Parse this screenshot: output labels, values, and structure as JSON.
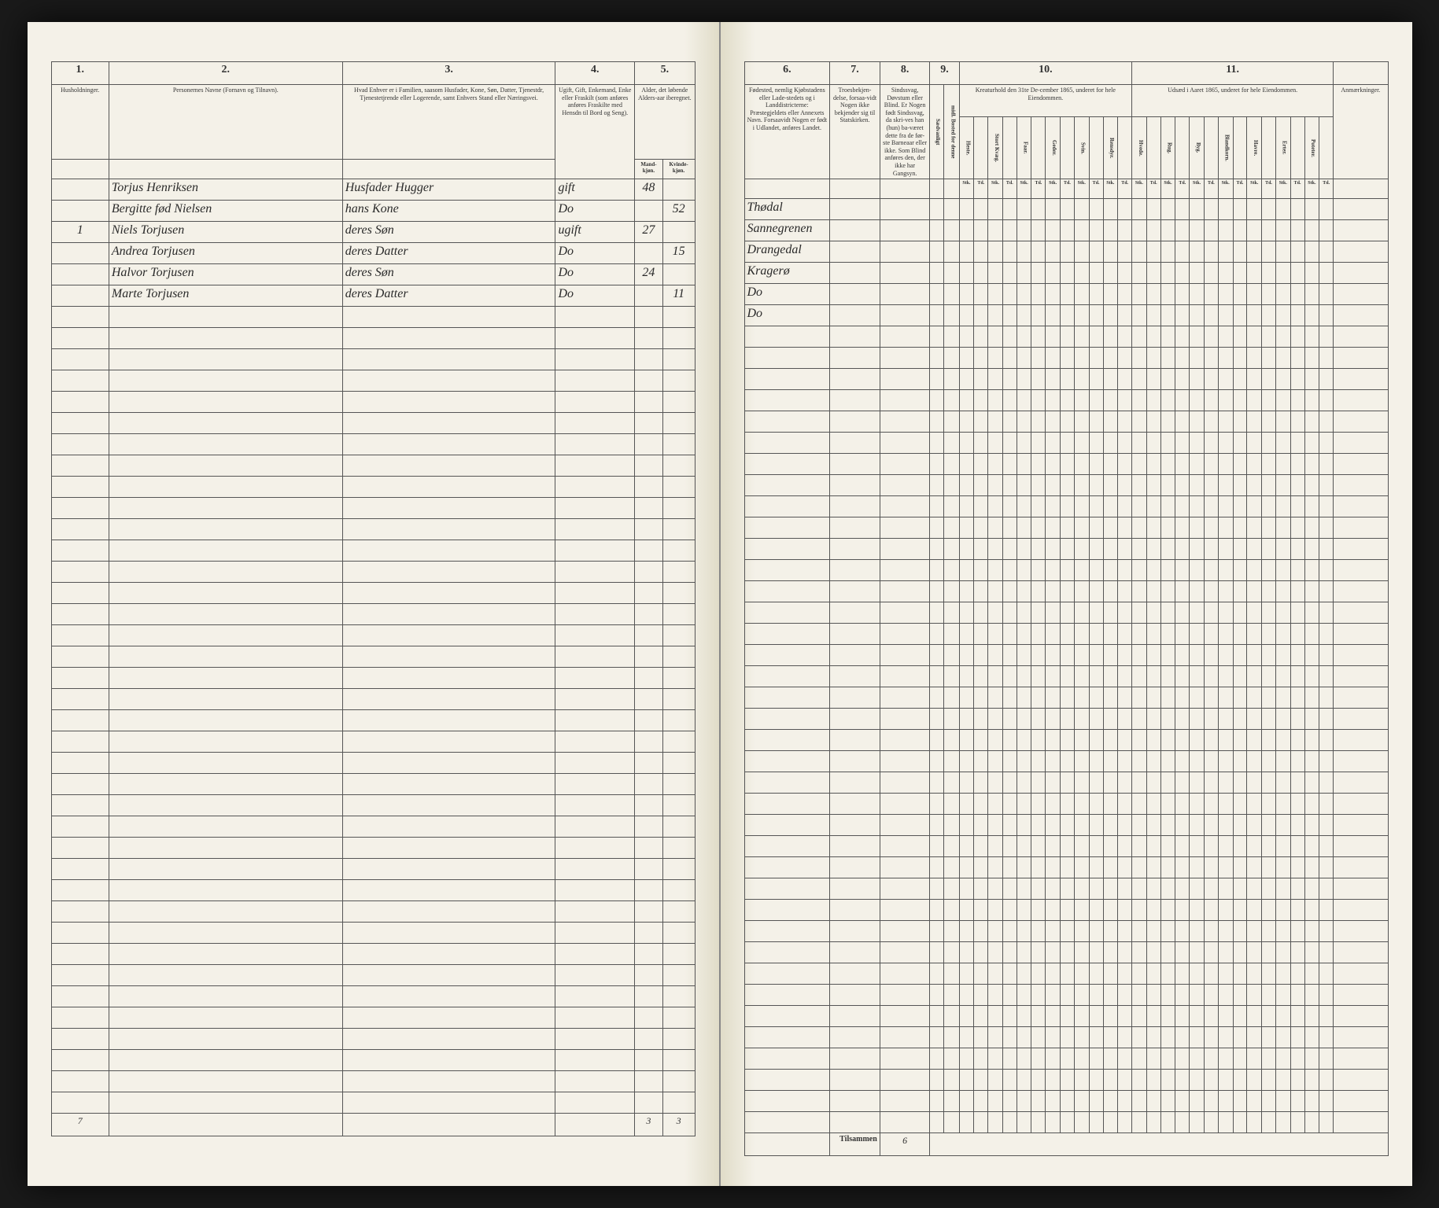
{
  "columns_left": {
    "c1": "1.",
    "c2": "2.",
    "c3": "3.",
    "c4": "4.",
    "c5": "5."
  },
  "columns_right": {
    "c6": "6.",
    "c7": "7.",
    "c8": "8.",
    "c9": "9.",
    "c10": "10.",
    "c11": "11."
  },
  "headers_left": {
    "h1": "Husholdninger.",
    "h2": "Personernes Navne (Fornavn og Tilnavn).",
    "h3": "Hvad Enhver er i Familien, saasom Husfader, Kone, Søn, Datter, Tjenestdr, Tjenestetjrende eller Logerende, samt Enhvers Stand eller Næringsvei.",
    "h4": "Ugift, Gift, Enkemand, Enke eller Fraskilt (som anføres anføres Fraskilte med Hensdn til Bord og Seng).",
    "h5": "Alder, det løbende Alders-aar iberegnet.",
    "h5a": "Mand-kjøn.",
    "h5b": "Kvinde-kjøn."
  },
  "headers_right": {
    "h6": "Fødested, nemlig Kjøbstadens eller Lade-stedets og i Landdistricterne: Præstegjeldets eller Annexets Navn. Forsaavidt Nogen er født i Udlandet, anføres Landet.",
    "h7": "Troesbekjen-delse, forsaa-vidt Nogen ikke bekjender sig til Statskirken.",
    "h8": "Sindssvag, Døvstum eller Blind. Er Nogen født Sindssvag, da skri-ves han (hun) ba-været dette fra de før-ste Barneaar eller ikke. Som Blind anføres den, der ikke har Gangsyn.",
    "h9": "",
    "h9a": "Sædvanligt",
    "h9b": "midl. Bosted for denne",
    "h10": "Kreaturhold den 31te De-cember 1865, underet for hele Eiendommen.",
    "h10_cols": [
      "Heste.",
      "Stort Kvæg.",
      "Faar.",
      "Geder.",
      "Svin.",
      "Rensdyr."
    ],
    "h11": "Udsæd i Aaret 1865, underet for hele Eiendommen.",
    "h11_cols": [
      "Hvede.",
      "Rug.",
      "Byg.",
      "Blandkorn.",
      "Havre.",
      "Erter.",
      "Poteter."
    ],
    "h12": "Anmærkninger."
  },
  "rows": [
    {
      "hh": "",
      "name": "Torjus Henriksen",
      "rel": "Husfader Hugger",
      "civ": "gift",
      "m": "48",
      "f": "",
      "birthplace": "Thødal"
    },
    {
      "hh": "",
      "name": "Bergitte fød Nielsen",
      "rel": "hans Kone",
      "civ": "Do",
      "m": "",
      "f": "52",
      "birthplace": "Sannegrenen"
    },
    {
      "hh": "1",
      "name": "Niels Torjusen",
      "rel": "deres Søn",
      "civ": "ugift",
      "m": "27",
      "f": "",
      "birthplace": "Drangedal"
    },
    {
      "hh": "",
      "name": "Andrea Torjusen",
      "rel": "deres Datter",
      "civ": "Do",
      "m": "",
      "f": "15",
      "birthplace": "Kragerø"
    },
    {
      "hh": "",
      "name": "Halvor Torjusen",
      "rel": "deres Søn",
      "civ": "Do",
      "m": "24",
      "f": "",
      "birthplace": "Do"
    },
    {
      "hh": "",
      "name": "Marte Torjusen",
      "rel": "deres Datter",
      "civ": "Do",
      "m": "",
      "f": "11",
      "birthplace": "Do"
    }
  ],
  "footer": {
    "left_page_num": "7",
    "sum_m": "3",
    "sum_f": "3",
    "tilsammen": "Tilsammen",
    "total": "6"
  },
  "empty_rows": 38
}
